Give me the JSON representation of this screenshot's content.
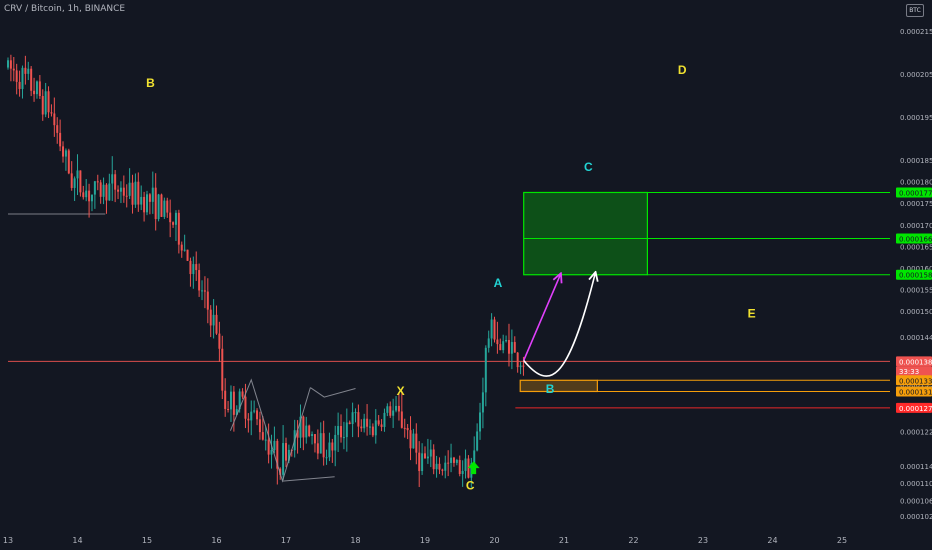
{
  "header": {
    "symbol_line": "CRV / Bitcoin, 1h, BINANCE",
    "currency_badge": "BTC"
  },
  "colors": {
    "background": "#131722",
    "up": "#26a69a",
    "down": "#ef5350",
    "axis_text": "#b2b5be",
    "wave_yellow": "#f0e130",
    "wave_cyan": "#22d3d3",
    "target_green": "#00e600",
    "zone_orange": "#f59e0b"
  },
  "chart_data": {
    "type": "candlestick",
    "x_axis": {
      "tick_labels": [
        "13",
        "14",
        "15",
        "16",
        "17",
        "18",
        "19",
        "20",
        "21",
        "22",
        "23",
        "24",
        "25"
      ]
    },
    "y_axis": {
      "range": [
        0.000101,
        0.000218
      ],
      "tick_labels": [
        "0.0002150",
        "0.0002050",
        "0.0001950",
        "0.0001850",
        "0.0001800",
        "0.0001750",
        "0.0001700",
        "0.0001650",
        "0.0001600",
        "0.0001550",
        "0.0001500",
        "0.0001440",
        "0.0001330",
        "0.0001280",
        "0.0001220",
        "0.0001140",
        "0.0001100",
        "0.0001060",
        "0.0001024"
      ],
      "tick_values": [
        0.000215,
        0.000205,
        0.000195,
        0.000185,
        0.00018,
        0.000175,
        0.00017,
        0.000165,
        0.00016,
        0.000155,
        0.00015,
        0.000144,
        0.000133,
        0.000128,
        0.000122,
        0.000114,
        0.00011,
        0.000106,
        0.0001024
      ]
    },
    "price_path": [
      [
        13.0,
        0.0002065
      ],
      [
        13.3,
        0.000203
      ],
      [
        13.6,
        0.000197
      ],
      [
        13.9,
        0.000181
      ],
      [
        14.2,
        0.000177
      ],
      [
        14.5,
        0.000179
      ],
      [
        14.8,
        0.000177
      ],
      [
        15.1,
        0.0001755
      ],
      [
        15.4,
        0.00017
      ],
      [
        15.6,
        0.000162
      ],
      [
        15.8,
        0.000153
      ],
      [
        16.0,
        0.000146
      ],
      [
        16.1,
        0.000129
      ],
      [
        16.4,
        0.0001285
      ],
      [
        16.6,
        0.000124
      ],
      [
        16.9,
        0.000115
      ],
      [
        17.1,
        0.00012
      ],
      [
        17.3,
        0.000124
      ],
      [
        17.6,
        0.000117
      ],
      [
        17.9,
        0.000125
      ],
      [
        18.2,
        0.0001225
      ],
      [
        18.5,
        0.000127
      ],
      [
        18.7,
        0.000124
      ],
      [
        18.9,
        0.000116
      ],
      [
        19.2,
        0.000114
      ],
      [
        19.5,
        0.000114
      ],
      [
        19.7,
        0.000115
      ],
      [
        19.8,
        0.000128
      ],
      [
        19.9,
        0.000144
      ],
      [
        20.0,
        0.000146
      ],
      [
        20.1,
        0.00014
      ],
      [
        20.2,
        0.000144
      ],
      [
        20.3,
        0.000139
      ],
      [
        20.42,
        0.0001383
      ]
    ],
    "horizontal_lines": [
      {
        "value": 0.0001383,
        "color": "#ef5350",
        "from_x": 13.0
      },
      {
        "value": 0.0001275,
        "color": "#ff2a2a",
        "from_x": 20.3
      },
      {
        "value": 0.0001725,
        "color": "#9598a1",
        "from_x": 13.0,
        "to_x": 14.4
      }
    ],
    "zones": [
      {
        "x_range": [
          20.42,
          22.2
        ],
        "y_range": [
          0.0001584,
          0.0001775
        ],
        "color": "#00e600",
        "mid_line": 0.0001668
      },
      {
        "x_range": [
          20.37,
          21.48
        ],
        "y_range": [
          0.0001313,
          0.0001339
        ],
        "color": "#f59e0b"
      }
    ],
    "extension_lines": [
      {
        "value": 0.0001775,
        "from_x": 22.2,
        "color": "#00e600"
      },
      {
        "value": 0.0001668,
        "from_x": 22.2,
        "color": "#00e600"
      },
      {
        "value": 0.0001584,
        "from_x": 22.2,
        "color": "#00e600"
      },
      {
        "value": 0.0001339,
        "from_x": 21.48,
        "color": "#f59e0b"
      },
      {
        "value": 0.0001313,
        "from_x": 21.48,
        "color": "#f59e0b"
      }
    ],
    "wave_labels": [
      {
        "text": "B",
        "x": 15.05,
        "y": 0.000202,
        "color": "#f0e130"
      },
      {
        "text": "X",
        "x": 18.65,
        "y": 0.0001305,
        "color": "#f0e130"
      },
      {
        "text": "C",
        "x": 19.65,
        "y": 0.0001085,
        "color": "#f0e130"
      },
      {
        "text": "D",
        "x": 22.7,
        "y": 0.000205,
        "color": "#f0e130"
      },
      {
        "text": "E",
        "x": 23.7,
        "y": 0.0001485,
        "color": "#f0e130"
      },
      {
        "text": "A",
        "x": 20.05,
        "y": 0.0001555,
        "color": "#22d3d3"
      },
      {
        "text": "C",
        "x": 21.35,
        "y": 0.0001825,
        "color": "#22d3d3"
      },
      {
        "text": "B",
        "x": 20.8,
        "y": 0.000131,
        "color": "#22d3d3"
      }
    ],
    "patterns": [
      {
        "points": [
          [
            16.2,
            0.0001222
          ],
          [
            16.5,
            0.000134
          ],
          [
            16.95,
            0.0001105
          ],
          [
            17.35,
            0.0001322
          ]
        ]
      },
      {
        "points": [
          [
            16.95,
            0.0001105
          ],
          [
            17.7,
            0.0001115
          ]
        ]
      },
      {
        "points": [
          [
            17.35,
            0.0001322
          ],
          [
            17.55,
            0.00013
          ],
          [
            18.0,
            0.000132
          ]
        ]
      }
    ],
    "arrows": [
      {
        "id": "magenta-arrow",
        "color": "#e040fb",
        "kind": "straight",
        "from": [
          20.42,
          0.0001385
        ],
        "to": [
          20.95,
          0.0001585
        ]
      },
      {
        "id": "white-arrow",
        "color": "#ffffff",
        "kind": "curved",
        "from": [
          20.42,
          0.0001385
        ],
        "to": [
          21.45,
          0.0001588
        ]
      }
    ],
    "marker_arrow": {
      "x": 19.7,
      "y": 0.0001135,
      "color": "#00e600"
    },
    "price_labels": [
      {
        "text": "0.0001775",
        "value": 0.0001775,
        "color": "#00e600",
        "text_color": "#131722"
      },
      {
        "text": "0.0001668",
        "value": 0.0001668,
        "color": "#00e600",
        "text_color": "#131722"
      },
      {
        "text": "0.0001584",
        "value": 0.0001584,
        "color": "#00e600",
        "text_color": "#131722"
      },
      {
        "text": "0.0001383",
        "value": 0.0001383,
        "color": "#ef5350",
        "text_color": "#ffffff"
      },
      {
        "text": "33:33",
        "value": 0.000136,
        "color": "#ef5350",
        "text_color": "#ffffff"
      },
      {
        "text": "0.0001339",
        "value": 0.0001339,
        "color": "#f59e0b",
        "text_color": "#131722"
      },
      {
        "text": "0.0001313",
        "value": 0.0001313,
        "color": "#f59e0b",
        "text_color": "#131722"
      },
      {
        "text": "0.0001275",
        "value": 0.0001275,
        "color": "#ff2a2a",
        "text_color": "#ffffff"
      }
    ]
  }
}
